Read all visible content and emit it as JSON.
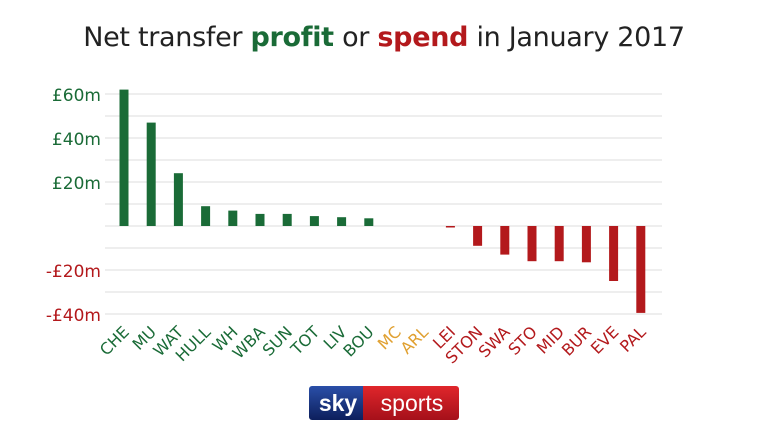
{
  "title": {
    "part1": "Net transfer ",
    "profit_word": "profit",
    "part2": " or ",
    "spend_word": "spend",
    "part3": " in January 2017"
  },
  "colors": {
    "profit": "#1a6b37",
    "spend": "#b3191c",
    "neutral": "#e0a030",
    "grid": "#dddddd",
    "title": "#222222"
  },
  "chart_data": {
    "type": "bar",
    "title": "Net transfer profit or spend in January 2017",
    "xlabel": "",
    "ylabel": "",
    "ylim": [
      -40,
      62
    ],
    "grid": true,
    "yticks": [
      {
        "value": 60,
        "label": "£60m"
      },
      {
        "value": 40,
        "label": "£40m"
      },
      {
        "value": 20,
        "label": "£20m"
      },
      {
        "value": -20,
        "label": "-£20m"
      },
      {
        "value": -40,
        "label": "-£40m"
      }
    ],
    "categories": [
      "CHE",
      "MU",
      "WAT",
      "HULL",
      "WH",
      "WBA",
      "SUN",
      "TOT",
      "LIV",
      "BOU",
      "MC",
      "ARL",
      "LEI",
      "STON",
      "SWA",
      "STO",
      "MID",
      "BUR",
      "EVE",
      "PAL"
    ],
    "values": [
      62,
      47,
      24,
      9,
      7,
      5.5,
      5.5,
      4.5,
      4,
      3.5,
      0,
      0,
      -0.5,
      -9,
      -13,
      -16,
      -16,
      -16.5,
      -25,
      -39.5
    ]
  },
  "logo": {
    "sky": "sky",
    "sports": "sports"
  }
}
